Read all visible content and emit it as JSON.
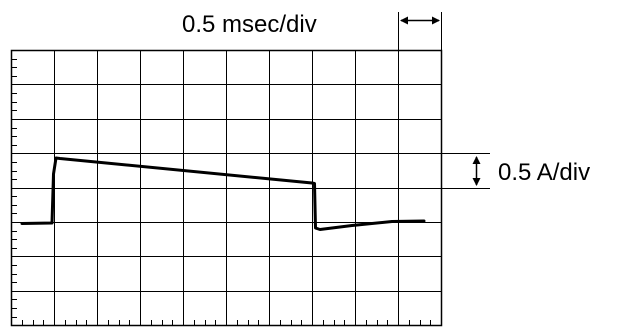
{
  "labels": {
    "time_scale": "0.5 msec/div",
    "current_scale": "0.5 A/div"
  },
  "colors": {
    "trace": "#000000",
    "grid": "#000000",
    "background": "#ffffff"
  },
  "icons": {
    "time_scale_marker": "double-headed-horizontal-arrow",
    "current_scale_marker": "double-headed-vertical-arrow"
  }
}
